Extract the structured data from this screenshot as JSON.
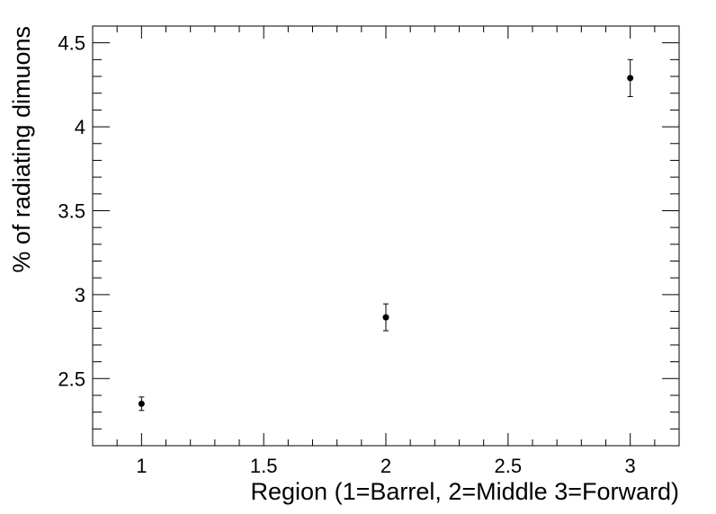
{
  "chart_data": {
    "type": "scatter",
    "title": "",
    "xlabel": "Region (1=Barrel, 2=Middle 3=Forward)",
    "ylabel": "% of radiating dimuons",
    "xlim": [
      0.8,
      3.2
    ],
    "ylim": [
      2.1,
      4.6
    ],
    "grid": false,
    "x_ticks": [
      1,
      1.5,
      2,
      2.5,
      3
    ],
    "x_tick_labels": [
      "1",
      "1.5",
      "2",
      "2.5",
      "3"
    ],
    "y_ticks": [
      2.5,
      3,
      3.5,
      4,
      4.5
    ],
    "y_tick_labels": [
      "2.5",
      "3",
      "3.5",
      "4",
      "4.5"
    ],
    "series": [
      {
        "name": "radiating dimuons",
        "color": "#000000",
        "points": [
          {
            "x": 1,
            "y": 2.35,
            "err": 0.04
          },
          {
            "x": 2,
            "y": 2.865,
            "err": 0.08
          },
          {
            "x": 3,
            "y": 4.29,
            "err": 0.11
          }
        ]
      }
    ]
  }
}
